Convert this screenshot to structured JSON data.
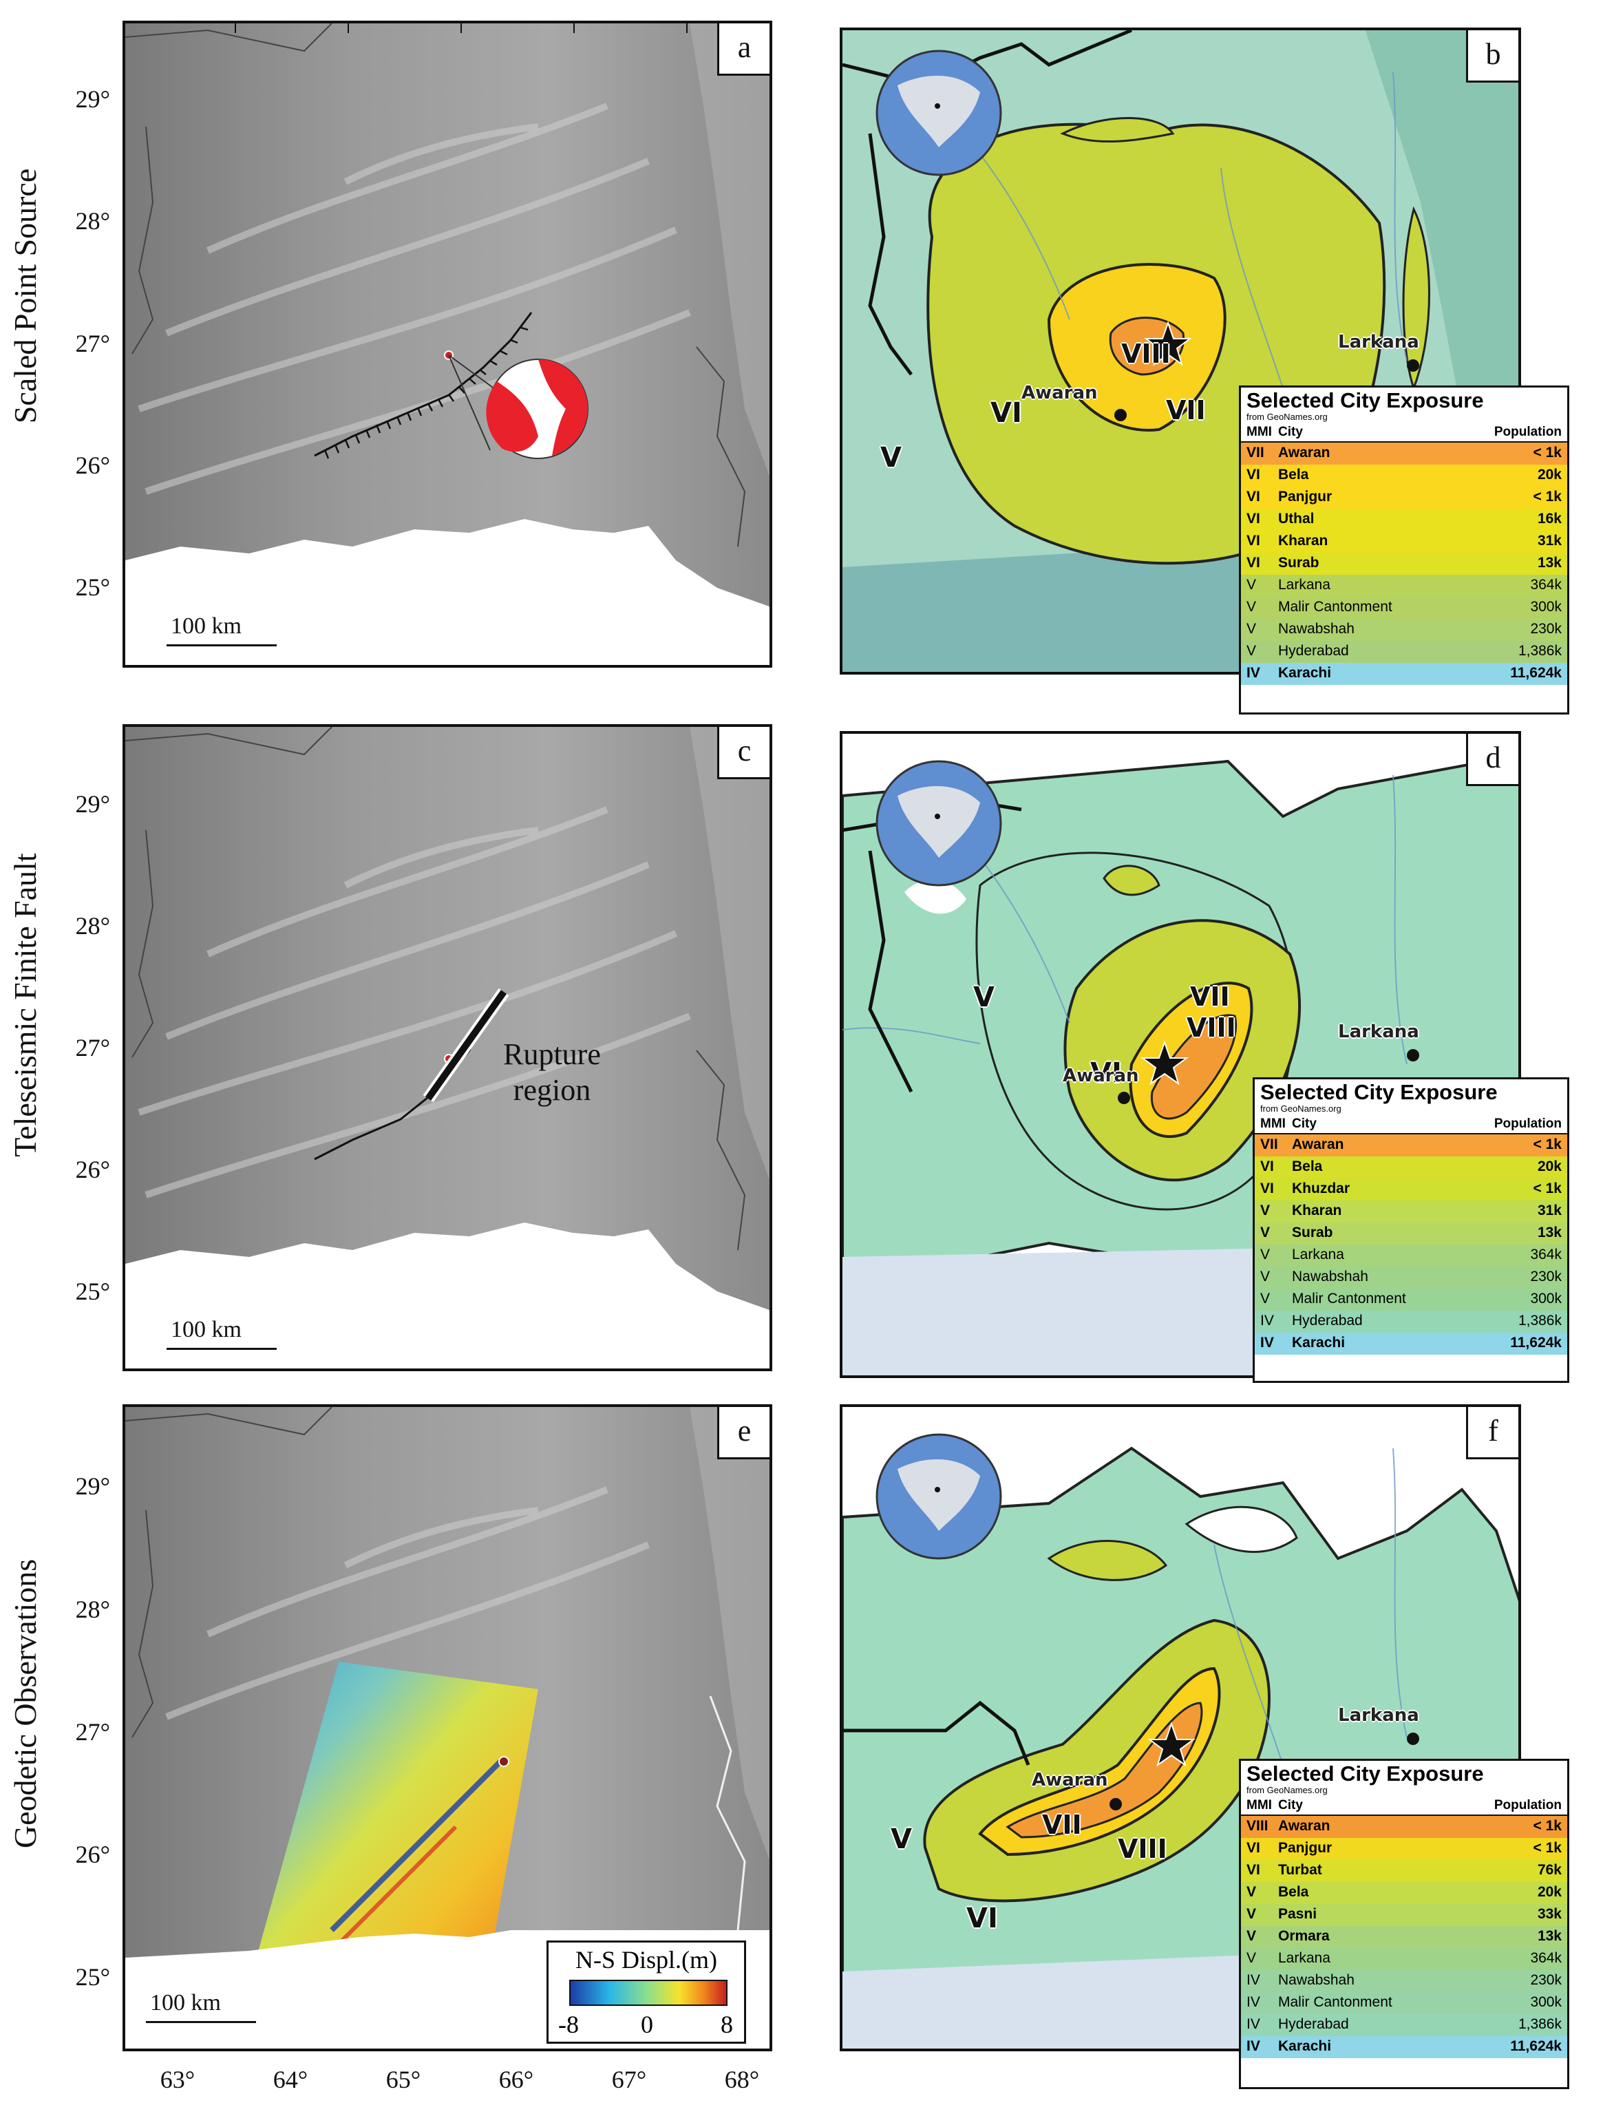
{
  "row_labels": [
    "Scaled Point Source",
    "Teleseismic Finite Fault",
    "Geodetic Observations"
  ],
  "latitude_ticks": [
    "29°",
    "28°",
    "27°",
    "26°",
    "25°"
  ],
  "longitude_ticks": [
    "63°",
    "64°",
    "65°",
    "66°",
    "67°",
    "68°"
  ],
  "scale_label": "100 km",
  "panels": {
    "a": {
      "letter": "a"
    },
    "b": {
      "letter": "b"
    },
    "c": {
      "letter": "c",
      "annotation": [
        "Rupture",
        "region"
      ]
    },
    "d": {
      "letter": "d"
    },
    "e": {
      "letter": "e",
      "colorbar": {
        "title": "N-S Displ.(m)",
        "ticks": [
          "-8",
          "0",
          "8"
        ],
        "min": -8,
        "max": 8
      }
    },
    "f": {
      "letter": "f"
    }
  },
  "shakemaps": {
    "b": {
      "intensity_labels": [
        "VIII",
        "VII",
        "VI",
        "V"
      ],
      "cities": [
        "Awaran",
        "Larkana"
      ]
    },
    "d": {
      "intensity_labels": [
        "VII",
        "VIII",
        "VI",
        "V"
      ],
      "cities": [
        "Awaran",
        "Larkana"
      ]
    },
    "f": {
      "intensity_labels": [
        "VII",
        "VIII",
        "VI",
        "V"
      ],
      "cities": [
        "Awaran",
        "Larkana"
      ]
    }
  },
  "exposure_tables": {
    "title": "Selected City Exposure",
    "source": "from GeoNames.org",
    "headers": {
      "mmi": "MMI",
      "city": "City",
      "population": "Population"
    },
    "b": [
      {
        "mmi": "VII",
        "city": "Awaran",
        "pop": "< 1k",
        "color": "#f7a13a",
        "bold": true
      },
      {
        "mmi": "VI",
        "city": "Bela",
        "pop": "20k",
        "color": "#f9d81e",
        "bold": true
      },
      {
        "mmi": "VI",
        "city": "Panjgur",
        "pop": "< 1k",
        "color": "#f9d81e",
        "bold": true
      },
      {
        "mmi": "VI",
        "city": "Uthal",
        "pop": "16k",
        "color": "#e9e11e",
        "bold": true
      },
      {
        "mmi": "VI",
        "city": "Kharan",
        "pop": "31k",
        "color": "#e9e11e",
        "bold": true
      },
      {
        "mmi": "VI",
        "city": "Surab",
        "pop": "13k",
        "color": "#dfe125",
        "bold": true
      },
      {
        "mmi": "V",
        "city": "Larkana",
        "pop": "364k",
        "color": "#b7d45a",
        "bold": false
      },
      {
        "mmi": "V",
        "city": "Malir Cantonment",
        "pop": "300k",
        "color": "#b4d264",
        "bold": false
      },
      {
        "mmi": "V",
        "city": "Nawabshah",
        "pop": "230k",
        "color": "#aed270",
        "bold": false
      },
      {
        "mmi": "V",
        "city": "Hyderabad",
        "pop": "1,386k",
        "color": "#a8d07c",
        "bold": false
      },
      {
        "mmi": "IV",
        "city": "Karachi",
        "pop": "11,624k",
        "color": "#8fd6e8",
        "bold": true
      }
    ],
    "d": [
      {
        "mmi": "VII",
        "city": "Awaran",
        "pop": "< 1k",
        "color": "#f7a13a",
        "bold": true
      },
      {
        "mmi": "VI",
        "city": "Bela",
        "pop": "20k",
        "color": "#d6e02a",
        "bold": true
      },
      {
        "mmi": "VI",
        "city": "Khuzdar",
        "pop": "< 1k",
        "color": "#cfe02f",
        "bold": true
      },
      {
        "mmi": "V",
        "city": "Kharan",
        "pop": "31k",
        "color": "#bedb52",
        "bold": true
      },
      {
        "mmi": "V",
        "city": "Surab",
        "pop": "13k",
        "color": "#b6d862",
        "bold": true
      },
      {
        "mmi": "V",
        "city": "Larkana",
        "pop": "364k",
        "color": "#a6d47c",
        "bold": false
      },
      {
        "mmi": "V",
        "city": "Nawabshah",
        "pop": "230k",
        "color": "#9fd38a",
        "bold": false
      },
      {
        "mmi": "V",
        "city": "Malir Cantonment",
        "pop": "300k",
        "color": "#99d396",
        "bold": false
      },
      {
        "mmi": "IV",
        "city": "Hyderabad",
        "pop": "1,386k",
        "color": "#95d6b4",
        "bold": false
      },
      {
        "mmi": "IV",
        "city": "Karachi",
        "pop": "11,624k",
        "color": "#8fd6e8",
        "bold": true
      }
    ],
    "f": [
      {
        "mmi": "VIII",
        "city": "Awaran",
        "pop": "< 1k",
        "color": "#f49a34",
        "bold": true
      },
      {
        "mmi": "VI",
        "city": "Panjgur",
        "pop": "< 1k",
        "color": "#f0d91e",
        "bold": true
      },
      {
        "mmi": "VI",
        "city": "Turbat",
        "pop": "76k",
        "color": "#d9df2a",
        "bold": true
      },
      {
        "mmi": "V",
        "city": "Bela",
        "pop": "20k",
        "color": "#c4dc48",
        "bold": true
      },
      {
        "mmi": "V",
        "city": "Pasni",
        "pop": "33k",
        "color": "#b8d95c",
        "bold": true
      },
      {
        "mmi": "V",
        "city": "Ormara",
        "pop": "13k",
        "color": "#a7d47a",
        "bold": true
      },
      {
        "mmi": "V",
        "city": "Larkana",
        "pop": "364k",
        "color": "#9fd38a",
        "bold": false
      },
      {
        "mmi": "IV",
        "city": "Nawabshah",
        "pop": "230k",
        "color": "#9ad3a0",
        "bold": false
      },
      {
        "mmi": "IV",
        "city": "Malir Cantonment",
        "pop": "300k",
        "color": "#98d3a8",
        "bold": false
      },
      {
        "mmi": "IV",
        "city": "Hyderabad",
        "pop": "1,386k",
        "color": "#96d5b4",
        "bold": false
      },
      {
        "mmi": "IV",
        "city": "Karachi",
        "pop": "11,624k",
        "color": "#8fd6e8",
        "bold": true
      }
    ]
  },
  "colors": {
    "topo_dark": "#6e6e6e",
    "topo_light": "#d8d8d8",
    "mmi_viii": "#f29b35",
    "mmi_vii": "#f8d21c",
    "mmi_vi": "#c9d63a",
    "mmi_v": "#9fdcbf",
    "ocean": "#8fbfc0",
    "beachball_red": "#e8212b"
  }
}
